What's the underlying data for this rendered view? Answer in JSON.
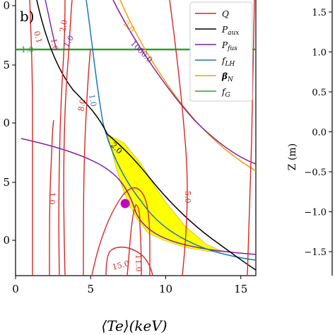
{
  "chart_data": {
    "type": "line",
    "panel_label": "b)",
    "xlabel": "⟨Te⟩(keV)",
    "xticks": [
      "0",
      "5",
      "10",
      "15"
    ],
    "xlim": [
      0,
      16
    ],
    "left_yticks": [
      "0",
      "5",
      "0",
      "5",
      "0"
    ],
    "right_axis": {
      "label": "Z (m)",
      "ticks": [
        "1.5",
        "1.0",
        "0.5",
        "0.0",
        "−0.5",
        "−1.0",
        "−1.5"
      ],
      "ylim": [
        -1.8,
        1.65
      ]
    },
    "legend": {
      "position": "top-right",
      "entries": [
        {
          "label": "Q",
          "color": "#d62728"
        },
        {
          "label": "Paux",
          "color": "#000000"
        },
        {
          "label": "Pfus",
          "color": "#7b1fa2"
        },
        {
          "label": "fLH",
          "color": "#1f77b4"
        },
        {
          "label": "βN",
          "color": "#ff9900"
        },
        {
          "label": "fG",
          "color": "#2ca02c"
        }
      ]
    },
    "contour_labels": [
      {
        "text": "0.1",
        "color": "#d62728"
      },
      {
        "text": "1.0",
        "color": "#d62728"
      },
      {
        "text": "2.0",
        "color": "#d62728"
      },
      {
        "text": "1.0",
        "color": "#7b1fa2"
      },
      {
        "text": "2.0",
        "color": "#ff9900"
      },
      {
        "text": "1000.0",
        "color": "#7b1fa2"
      },
      {
        "text": "1.0",
        "color": "#2ca02c"
      },
      {
        "text": "8.0",
        "color": "#d62728"
      },
      {
        "text": "1.0",
        "color": "#1f77b4"
      },
      {
        "text": "2.0",
        "color": "#000000"
      },
      {
        "text": "1.0",
        "color": "#d62728"
      },
      {
        "text": "5.0",
        "color": "#d62728"
      },
      {
        "text": "11.0",
        "color": "#d62728"
      },
      {
        "text": "15.0",
        "color": "#d62728"
      }
    ],
    "operating_point": {
      "x": 7.3,
      "color": "#c000c0"
    },
    "allowed_region_color": "#ffff00"
  },
  "colors": {
    "Q": "#d62728",
    "Paux": "#000000",
    "Pfus": "#7b1fa2",
    "fLH": "#1f77b4",
    "betaN": "#ff9900",
    "fG": "#2ca02c"
  }
}
